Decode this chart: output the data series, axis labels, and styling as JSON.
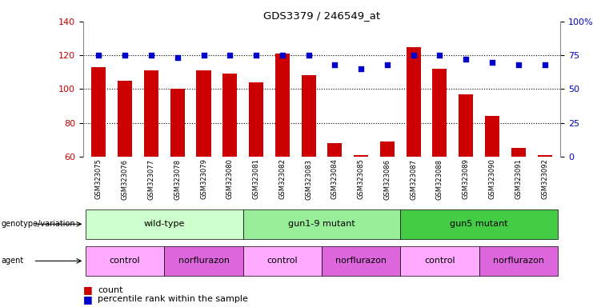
{
  "title": "GDS3379 / 246549_at",
  "samples": [
    "GSM323075",
    "GSM323076",
    "GSM323077",
    "GSM323078",
    "GSM323079",
    "GSM323080",
    "GSM323081",
    "GSM323082",
    "GSM323083",
    "GSM323084",
    "GSM323085",
    "GSM323086",
    "GSM323087",
    "GSM323088",
    "GSM323089",
    "GSM323090",
    "GSM323091",
    "GSM323092"
  ],
  "counts": [
    113,
    105,
    111,
    100,
    111,
    109,
    104,
    121,
    108,
    68,
    61,
    69,
    125,
    112,
    97,
    84,
    65,
    61
  ],
  "percentile_ranks": [
    75,
    75,
    75,
    73,
    75,
    75,
    75,
    75,
    75,
    68,
    65,
    68,
    75,
    75,
    72,
    70,
    68,
    68
  ],
  "ylim_left": [
    60,
    140
  ],
  "ylim_right": [
    0,
    100
  ],
  "yticks_left": [
    60,
    80,
    100,
    120,
    140
  ],
  "yticks_right": [
    0,
    25,
    50,
    75,
    100
  ],
  "bar_color": "#cc0000",
  "dot_color": "#0000cc",
  "background_color": "#ffffff",
  "groups": [
    {
      "label": "wild-type",
      "start": 0,
      "end": 5,
      "color": "#ccffcc"
    },
    {
      "label": "gun1-9 mutant",
      "start": 6,
      "end": 11,
      "color": "#99ee99"
    },
    {
      "label": "gun5 mutant",
      "start": 12,
      "end": 17,
      "color": "#44cc44"
    }
  ],
  "agents": [
    {
      "label": "control",
      "start": 0,
      "end": 2,
      "color": "#ffaaff"
    },
    {
      "label": "norflurazon",
      "start": 3,
      "end": 5,
      "color": "#dd66dd"
    },
    {
      "label": "control",
      "start": 6,
      "end": 8,
      "color": "#ffaaff"
    },
    {
      "label": "norflurazon",
      "start": 9,
      "end": 11,
      "color": "#dd66dd"
    },
    {
      "label": "control",
      "start": 12,
      "end": 14,
      "color": "#ffaaff"
    },
    {
      "label": "norflurazon",
      "start": 15,
      "end": 17,
      "color": "#dd66dd"
    }
  ]
}
